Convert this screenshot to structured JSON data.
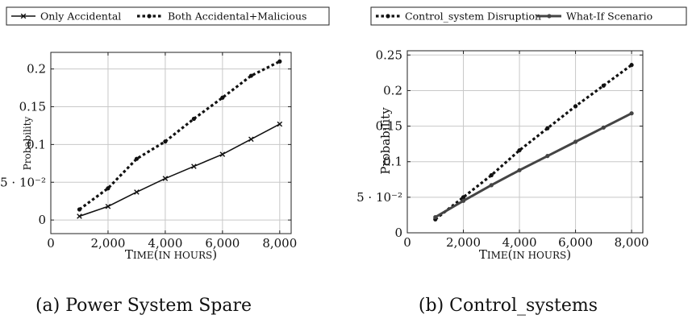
{
  "chart_data": [
    {
      "type": "line",
      "caption": "(a) Power System Spare",
      "xlabel": "Time",
      "xlabel_suffix": "(in hours)",
      "ylabel": "Probability",
      "xlim": [
        0,
        8400
      ],
      "ylim": [
        -0.018,
        0.222
      ],
      "x_ticks": [
        0,
        2000,
        4000,
        6000,
        8000
      ],
      "x_tick_labels": [
        "0",
        "2,000",
        "4,000",
        "6,000",
        "8,000"
      ],
      "y_ticks": [
        0,
        0.05,
        0.1,
        0.15,
        0.2
      ],
      "y_tick_labels": [
        "0",
        "5 · 10⁻²",
        "0.1",
        "0.15",
        "0.2"
      ],
      "grid": true,
      "legend_position": "top",
      "series": [
        {
          "name": "Only Accidental",
          "style": "solid",
          "marker": "x",
          "color": "#111111",
          "x": [
            1000,
            2000,
            3000,
            4000,
            5000,
            6000,
            7000,
            8000
          ],
          "values": [
            0.005,
            0.018,
            0.037,
            0.055,
            0.071,
            0.087,
            0.107,
            0.127
          ]
        },
        {
          "name": "Both Accidental+Malicious",
          "style": "dotted",
          "marker": "dot",
          "color": "#111111",
          "x": [
            1000,
            2000,
            3000,
            4000,
            5000,
            6000,
            7000,
            8000
          ],
          "values": [
            0.014,
            0.042,
            0.081,
            0.104,
            0.134,
            0.162,
            0.191,
            0.21
          ]
        }
      ]
    },
    {
      "type": "line",
      "caption": "(b) Control_systems",
      "xlabel": "Time",
      "xlabel_suffix": "(in hours)",
      "ylabel": "Probability",
      "xlim": [
        0,
        8400
      ],
      "ylim": [
        0,
        0.256
      ],
      "x_ticks": [
        0,
        2000,
        4000,
        6000,
        8000
      ],
      "x_tick_labels": [
        "0",
        "2,000",
        "4,000",
        "6,000",
        "8,000"
      ],
      "y_ticks": [
        0,
        0.05,
        0.1,
        0.15,
        0.2,
        0.25
      ],
      "y_tick_labels": [
        "0",
        "5 · 10⁻²",
        "0.1",
        "0.15",
        "0.2",
        "0.25"
      ],
      "grid": true,
      "legend_position": "top",
      "series": [
        {
          "name": "Control_system Disruption",
          "style": "dotted",
          "marker": "dot",
          "color": "#111111",
          "x": [
            1000,
            2000,
            3000,
            4000,
            5000,
            6000,
            7000,
            8000
          ],
          "values": [
            0.019,
            0.05,
            0.081,
            0.116,
            0.147,
            0.178,
            0.207,
            0.236
          ]
        },
        {
          "name": "What-If Scenario",
          "style": "solid-thick",
          "marker": "dot",
          "color": "#444444",
          "x": [
            1000,
            2000,
            3000,
            4000,
            5000,
            6000,
            7000,
            8000
          ],
          "values": [
            0.022,
            0.045,
            0.067,
            0.088,
            0.108,
            0.128,
            0.148,
            0.168
          ]
        }
      ]
    }
  ]
}
